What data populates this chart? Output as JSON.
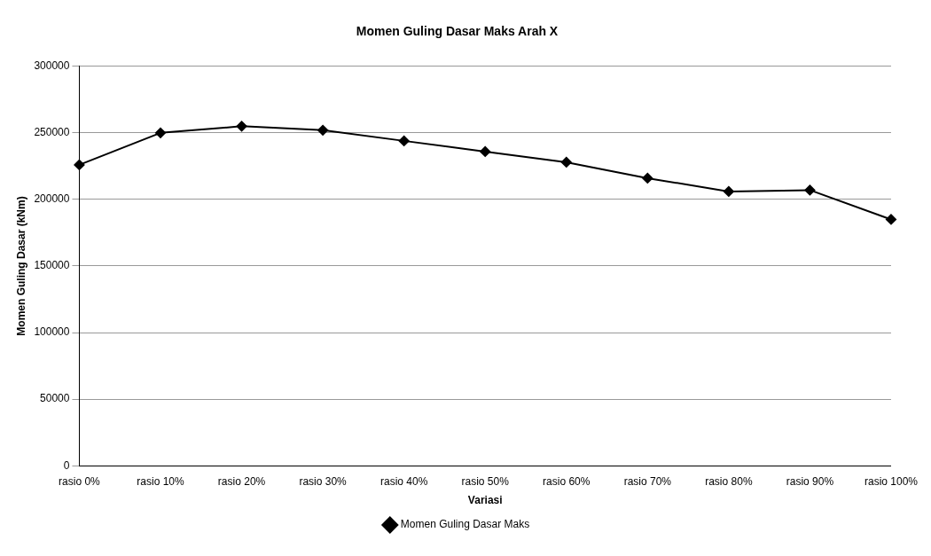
{
  "chart_data": {
    "type": "line",
    "title": "Momen Guling Dasar Maks Arah X",
    "xlabel": "Variasi",
    "ylabel": "Momen Guling Dasar (kNm)",
    "categories": [
      "rasio 0%",
      "rasio 10%",
      "rasio 20%",
      "rasio 30%",
      "rasio 40%",
      "rasio 50%",
      "rasio 60%",
      "rasio 70%",
      "rasio 80%",
      "rasio 90%",
      "rasio 100%"
    ],
    "series": [
      {
        "name": "Momen Guling Dasar Maks",
        "color": "#000000",
        "values": [
          226000,
          250000,
          255000,
          252000,
          244000,
          236000,
          228000,
          216000,
          206000,
          207000,
          185000
        ]
      }
    ],
    "ylim": [
      0,
      300000
    ],
    "yticks": [
      0,
      50000,
      100000,
      150000,
      200000,
      250000,
      300000
    ],
    "grid": "y",
    "legend": "bottom",
    "marker": "diamond",
    "line_style": "solid"
  }
}
